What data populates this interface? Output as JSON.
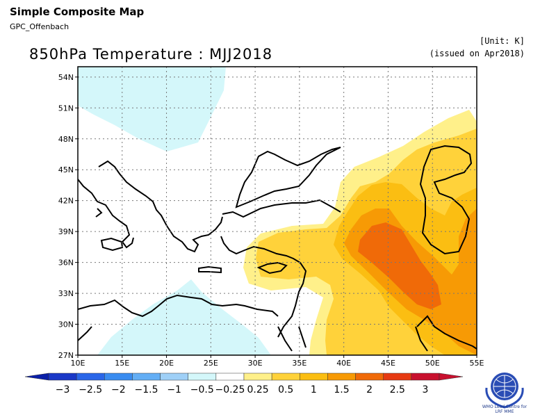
{
  "header": {
    "title": "Simple Composite Map",
    "source": "GPC_Offenbach",
    "unit": "[Unit: K]",
    "issued": "(issued on Apr2018)"
  },
  "map": {
    "title": "850hPa Temperature : MJJ2018",
    "variable": "850hPa Temperature anomaly",
    "lon_range": [
      10,
      55
    ],
    "lat_range": [
      27,
      55
    ],
    "grid": true,
    "lat_labels": [
      "54N",
      "51N",
      "48N",
      "45N",
      "42N",
      "39N",
      "36N",
      "33N",
      "30N",
      "27N"
    ],
    "lon_labels": [
      "10E",
      "15E",
      "20E",
      "25E",
      "30E",
      "35E",
      "40E",
      "45E",
      "50E",
      "55E"
    ]
  },
  "legend": {
    "labels": [
      "−3",
      "−2.5",
      "−2",
      "−1.5",
      "−1",
      "−0.5",
      "−0.25",
      "0.25",
      "0.5",
      "1",
      "1.5",
      "2",
      "2.5",
      "3"
    ],
    "colors": [
      "#1a38c7",
      "#2a66e8",
      "#3a8cf0",
      "#63aef5",
      "#9fd0f7",
      "#d4f7fa",
      "#ffffff",
      "#fff08a",
      "#ffd23a",
      "#fbbe12",
      "#f79a05",
      "#f06a08",
      "#e63a12",
      "#c8102e"
    ],
    "arrow_left_color": "#0a1fa8",
    "arrow_right_color": "#c8102e"
  },
  "logo": {
    "org": "WMO Lead Centre for",
    "name": "LRF MME"
  }
}
